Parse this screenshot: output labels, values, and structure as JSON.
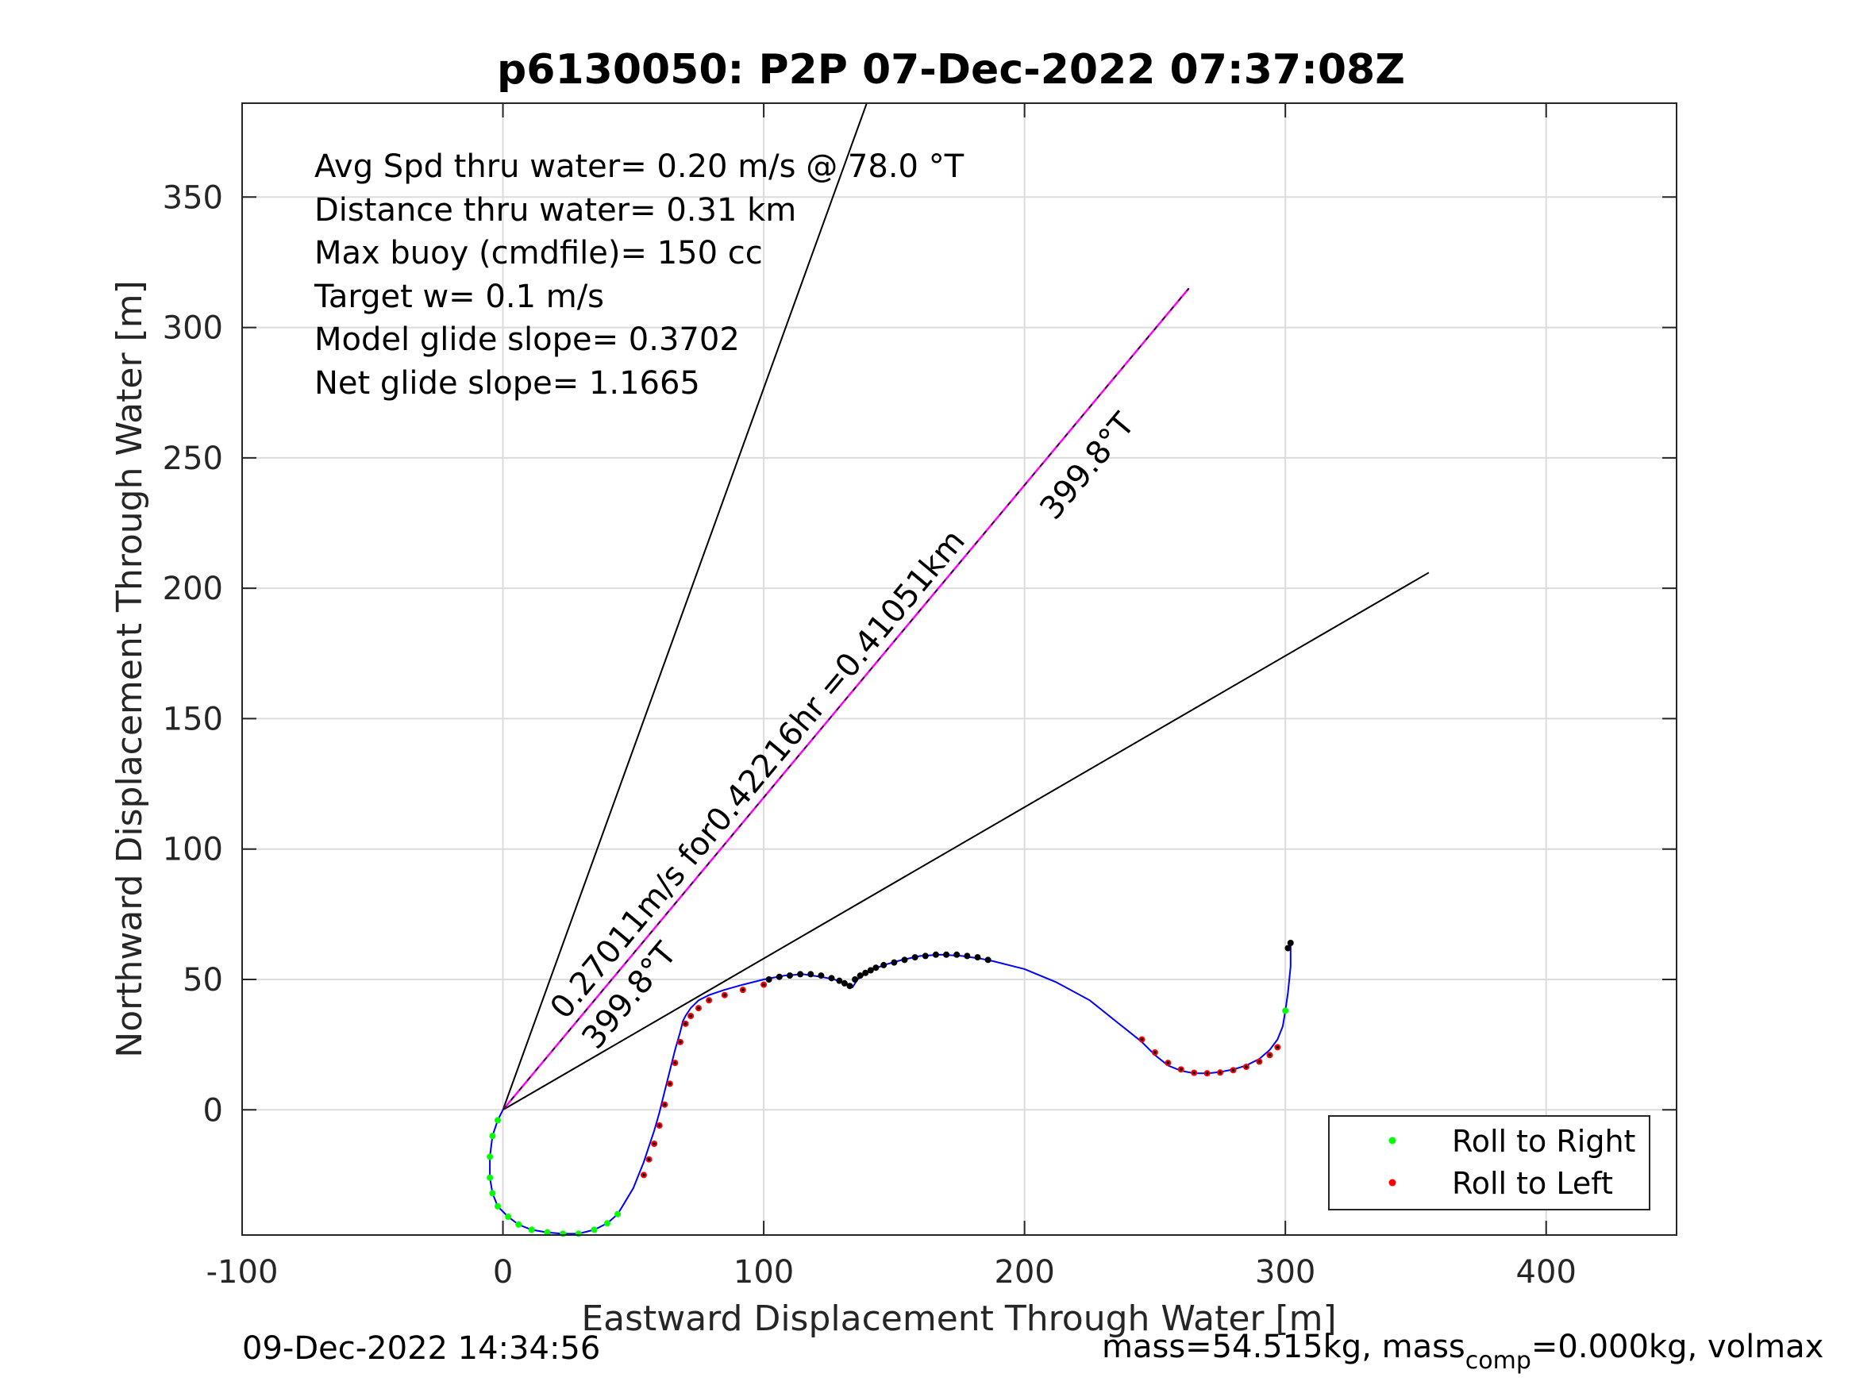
{
  "chart_data": {
    "type": "scatter",
    "title": "p6130050: P2P 07-Dec-2022 07:37:08Z",
    "xlabel": "Eastward Displacement Through Water [m]",
    "ylabel": "Northward Displacement Through Water [m]",
    "xlim": [
      -100,
      450
    ],
    "ylim": [
      -48,
      386
    ],
    "xticks": [
      -100,
      0,
      100,
      200,
      300,
      400
    ],
    "yticks": [
      0,
      50,
      100,
      150,
      200,
      250,
      300,
      350
    ],
    "grid": true,
    "legend_position": "bottom-right",
    "colors": {
      "track": "#0000ff",
      "roll_right": "#00ff00",
      "roll_left": "#ff0000",
      "sample_dots": "#000000",
      "heading_line": "#ff00ff",
      "cone_lines": "#000000",
      "grid": "#dcdcdc"
    },
    "info_lines": [
      "Avg Spd thru water=  0.20 m/s @  78.0 °T",
      "Distance thru water=  0.31 km",
      "Max buoy (cmdfile)= 150 cc",
      "Target w= 0.1 m/s",
      "Model glide slope= 0.3702",
      "Net glide slope= 1.1665"
    ],
    "annotations": {
      "speed_label": "0.27011m/s for0.42216hr =0.41051km",
      "heading_label_far": "399.8°T",
      "heading_label_near": "399.8°T"
    },
    "lines": [
      {
        "kind": "cone",
        "x": [
          0,
          139.5
        ],
        "y": [
          0,
          386
        ]
      },
      {
        "kind": "cone",
        "x": [
          0,
          355
        ],
        "y": [
          0,
          206
        ]
      },
      {
        "kind": "heading",
        "x": [
          0,
          263
        ],
        "y": [
          0,
          315
        ]
      },
      {
        "kind": "heading-black",
        "x": [
          0,
          263
        ],
        "y": [
          0,
          315
        ]
      }
    ],
    "track": {
      "x": [
        0,
        -2,
        -4,
        -5,
        -5,
        -4,
        -2,
        2,
        6,
        11,
        17,
        23,
        29,
        35,
        40,
        44,
        47,
        50,
        52,
        54,
        56,
        58,
        60,
        62,
        64,
        66,
        68,
        69,
        70,
        72,
        75,
        79,
        85,
        92,
        100,
        108,
        115,
        122,
        127,
        131,
        134,
        136,
        140,
        146,
        153,
        160,
        168,
        176,
        183,
        188,
        200,
        212,
        225,
        235,
        240,
        245,
        250,
        255,
        260,
        265,
        270,
        275,
        280,
        285,
        290,
        294,
        297,
        299,
        300,
        301,
        302,
        302
      ],
      "y": [
        0,
        -4,
        -10,
        -18,
        -26,
        -32,
        -37,
        -41,
        -44,
        -46,
        -47,
        -47.5,
        -47.5,
        -46,
        -43.5,
        -40,
        -35,
        -30,
        -25,
        -20,
        -14,
        -8,
        -1,
        7,
        15,
        23,
        30,
        34,
        36,
        39,
        42,
        44,
        46,
        48,
        50,
        51.5,
        52,
        51,
        50,
        48.5,
        47,
        50,
        53,
        55.5,
        57.5,
        59,
        59.5,
        59,
        58,
        57,
        54,
        49,
        42,
        34,
        30,
        26,
        21,
        17,
        15,
        14,
        14,
        14.5,
        15.5,
        17,
        19.5,
        23,
        27,
        32,
        38,
        45,
        55,
        63
      ]
    },
    "roll_right": {
      "x": [
        -2,
        -4,
        -5,
        -5,
        -4,
        -2,
        2,
        6,
        11,
        17,
        23,
        29,
        35,
        40,
        44,
        300
      ],
      "y": [
        -4,
        -10,
        -18,
        -26,
        -32,
        -37,
        -41,
        -44,
        -46,
        -47,
        -47.5,
        -47.5,
        -46,
        -43.5,
        -40,
        38
      ]
    },
    "roll_left": {
      "x": [
        54,
        56,
        58,
        60,
        62,
        64,
        66,
        68,
        70,
        72,
        75,
        79,
        85,
        92,
        100,
        245,
        250,
        255,
        260,
        265,
        270,
        275,
        280,
        285,
        290,
        294,
        297
      ],
      "y": [
        -25,
        -19,
        -13,
        -6,
        2,
        10,
        18,
        26,
        33,
        36,
        39,
        42,
        44,
        46,
        48,
        27,
        22,
        18,
        15.5,
        14.2,
        14,
        14.3,
        15.2,
        16.5,
        18.5,
        21,
        24
      ]
    },
    "samples": {
      "x": [
        102,
        106,
        110,
        114,
        118,
        122,
        126,
        129,
        131,
        133,
        135,
        137,
        139,
        141,
        143,
        146,
        150,
        154,
        158,
        162,
        166,
        170,
        174,
        178,
        182,
        186,
        301,
        302
      ],
      "y": [
        50,
        51,
        51.5,
        52,
        52,
        51.5,
        50.5,
        49.5,
        48.5,
        47.5,
        50,
        51.5,
        52.5,
        53.5,
        54.5,
        55.5,
        56.5,
        57.5,
        58.5,
        59,
        59.5,
        59.5,
        59.5,
        59,
        58.5,
        57.5,
        62,
        64
      ]
    },
    "legend": [
      "Roll to Right",
      "Roll to Left"
    ]
  },
  "footer": {
    "timestamp": "09-Dec-2022 14:34:56",
    "mass_prefix": "mass=54.515kg, mass",
    "mass_sub": "comp",
    "mass_suffix": "=0.000kg, volmax"
  }
}
